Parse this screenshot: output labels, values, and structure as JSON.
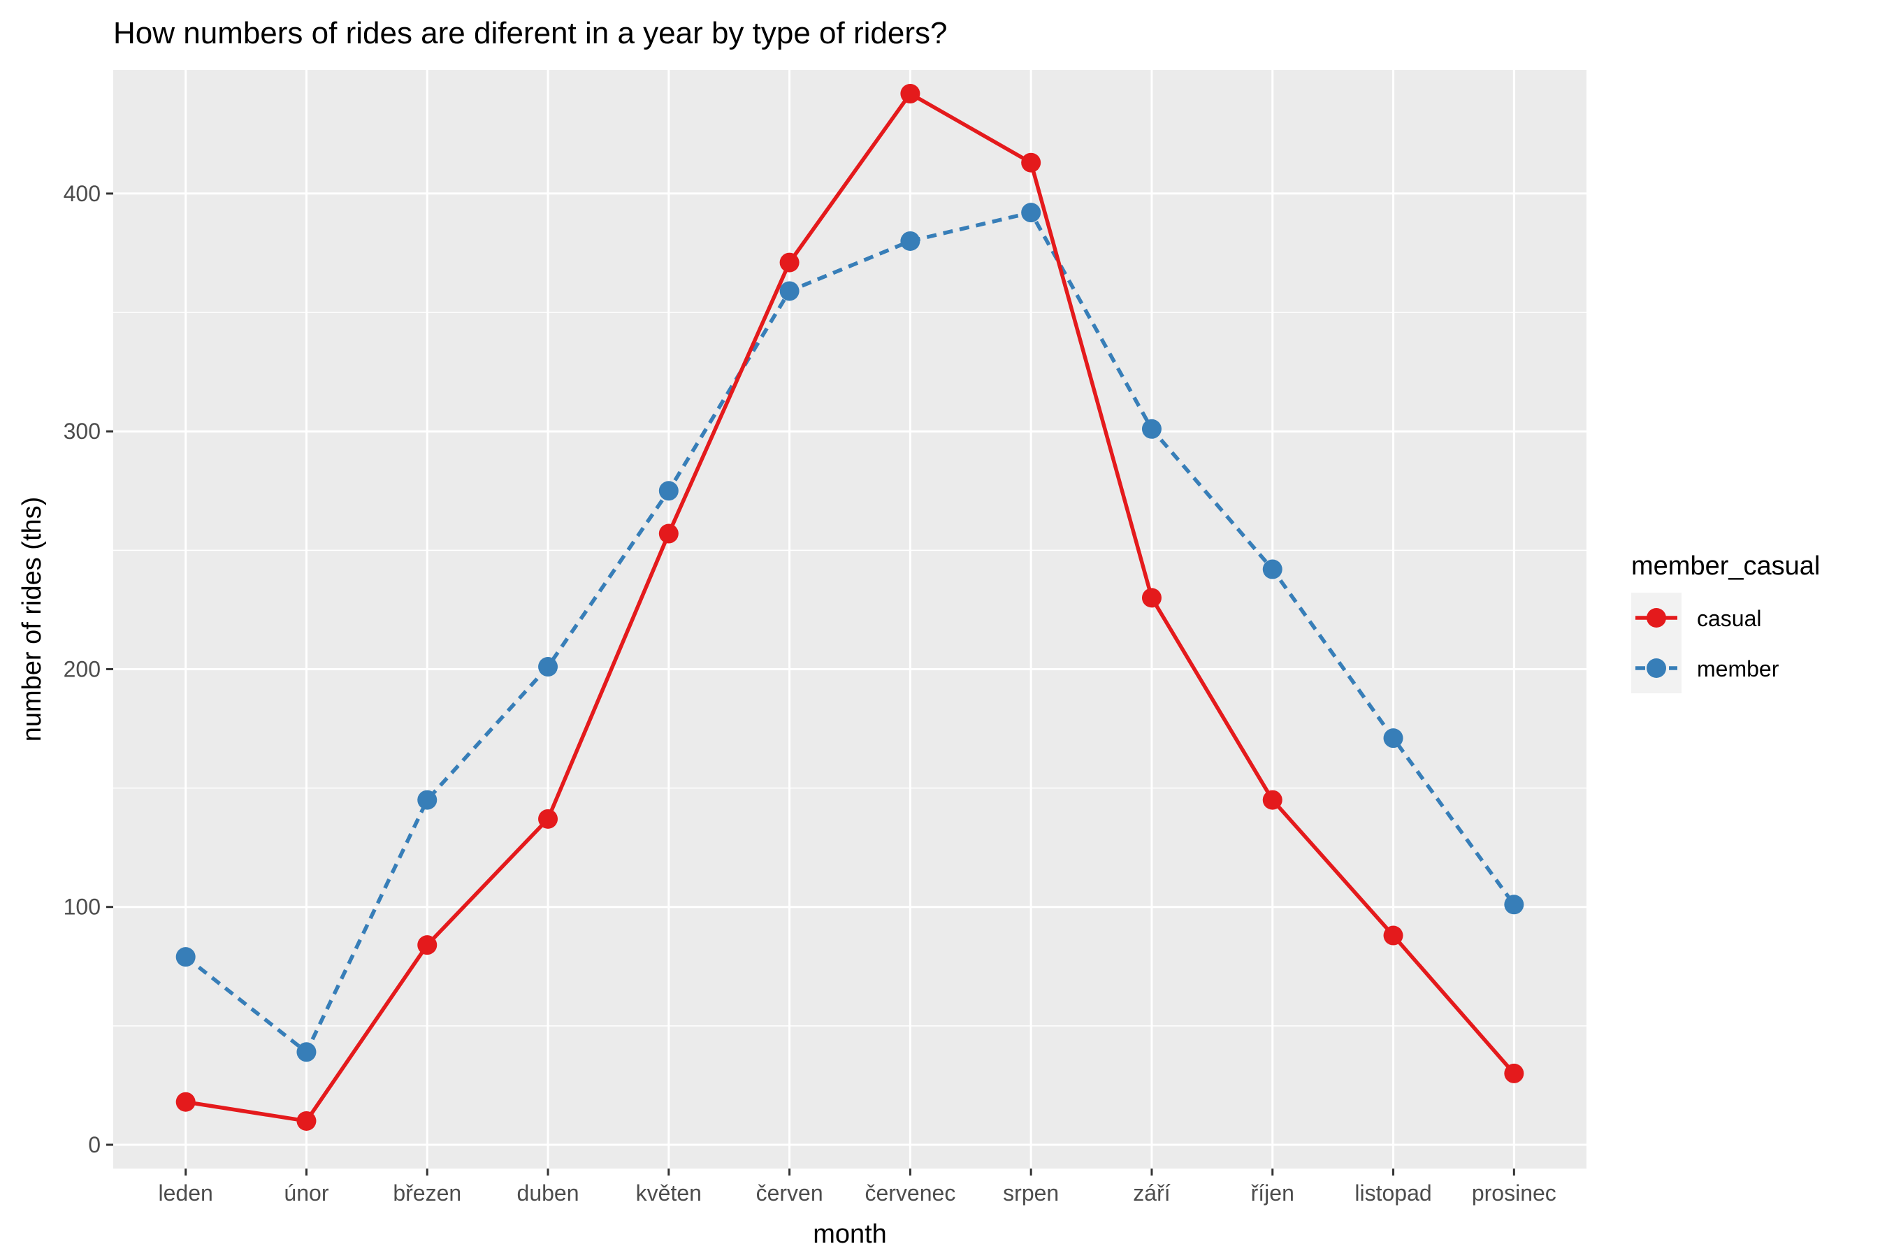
{
  "chart_data": {
    "type": "line",
    "title": "How numbers of rides are diferent in a year by type of riders?",
    "xlabel": "month",
    "ylabel": "number of rides (ths)",
    "categories": [
      "leden",
      "únor",
      "březen",
      "duben",
      "květen",
      "červen",
      "červenec",
      "srpen",
      "září",
      "říjen",
      "listopad",
      "prosinec"
    ],
    "ylim": [
      -10,
      452
    ],
    "yticks": [
      0,
      100,
      200,
      300,
      400
    ],
    "grid": true,
    "legend": {
      "title": "member_casual",
      "placement": "right"
    },
    "series": [
      {
        "name": "casual",
        "color": "#E41A1C",
        "line_style": "solid",
        "values": [
          18,
          10,
          84,
          137,
          257,
          371,
          442,
          413,
          230,
          145,
          88,
          30
        ]
      },
      {
        "name": "member",
        "color": "#377EB8",
        "line_style": "dashed",
        "values": [
          79,
          39,
          145,
          201,
          275,
          359,
          380,
          392,
          301,
          242,
          171,
          101
        ]
      }
    ],
    "panel_background": "#EBEBEB",
    "grid_color": "#FFFFFF"
  }
}
